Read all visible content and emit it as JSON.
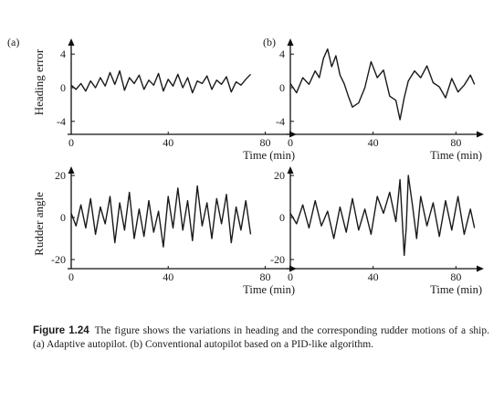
{
  "figure": {
    "caption_label": "Figure 1.24",
    "caption_text": "The figure shows the variations in heading and the corresponding rudder motions of a ship. (a) Adaptive autopilot. (b) Conventional autopilot based on a PID-like algorithm.",
    "panel_a_label": "(a)",
    "panel_b_label": "(b)",
    "ylabel_top": "Heading error",
    "ylabel_bottom": "Rudder angle",
    "xlabel": "Time (min)"
  },
  "chart_data": [
    {
      "type": "line",
      "panel": "(a)",
      "xlabel": "Time (min)",
      "ylabel": "Heading error",
      "xticks": [
        0,
        40,
        80
      ],
      "yticks": [
        -4,
        0,
        4
      ],
      "xlim": [
        0,
        90
      ],
      "ylim": [
        -5,
        5
      ],
      "series": [
        {
          "x": [
            0,
            2,
            4,
            6,
            8,
            10,
            12,
            14,
            16,
            18,
            20,
            22,
            24,
            26,
            28,
            30,
            32,
            34,
            36,
            38,
            40,
            42,
            44,
            46,
            48,
            50,
            52,
            54,
            56,
            58,
            60,
            62,
            64,
            66,
            68,
            70,
            72,
            74
          ],
          "y": [
            0.3,
            -0.2,
            0.5,
            -0.4,
            0.8,
            0,
            1.2,
            0.2,
            1.8,
            0.4,
            2,
            -0.3,
            1.2,
            0.5,
            1.5,
            -0.2,
            0.9,
            0.3,
            1.7,
            -0.4,
            1,
            0.2,
            1.6,
            0,
            1.2,
            -0.6,
            0.8,
            0.5,
            1.4,
            -0.2,
            0.9,
            0.4,
            1.3,
            -0.5,
            0.7,
            0.3,
            1,
            1.6
          ]
        }
      ]
    },
    {
      "type": "line",
      "panel": "(b)",
      "xlabel": "Time (min)",
      "ylabel": "Heading error",
      "xticks": [
        0,
        40,
        80
      ],
      "yticks": [
        -4,
        0,
        4
      ],
      "xlim": [
        0,
        90
      ],
      "ylim": [
        -5,
        5
      ],
      "series": [
        {
          "x": [
            0,
            3,
            6,
            9,
            12,
            14,
            16,
            18,
            20,
            22,
            24,
            26,
            28,
            30,
            33,
            36,
            39,
            42,
            45,
            48,
            51,
            53,
            55,
            57,
            60,
            63,
            66,
            69,
            72,
            75,
            78,
            81,
            84,
            87,
            89
          ],
          "y": [
            0.5,
            -0.6,
            1.2,
            0.4,
            2,
            1.2,
            3.5,
            4.6,
            2.5,
            3.8,
            1.5,
            0.5,
            -1,
            -2.3,
            -1.8,
            0,
            3.1,
            1.2,
            2.1,
            -1,
            -1.5,
            -3.8,
            -1.2,
            0.8,
            2,
            1.2,
            2.6,
            0.6,
            0.1,
            -1.2,
            1.1,
            -0.5,
            0.3,
            1.5,
            0.4
          ]
        }
      ]
    },
    {
      "type": "line",
      "panel": "(a)",
      "xlabel": "Time (min)",
      "ylabel": "Rudder angle",
      "xticks": [
        0,
        40,
        80
      ],
      "yticks": [
        -20,
        0,
        20
      ],
      "xlim": [
        0,
        90
      ],
      "ylim": [
        -25,
        25
      ],
      "series": [
        {
          "x": [
            0,
            2,
            4,
            6,
            8,
            10,
            12,
            14,
            16,
            18,
            20,
            22,
            24,
            26,
            28,
            30,
            32,
            34,
            36,
            38,
            40,
            42,
            44,
            46,
            48,
            50,
            52,
            54,
            56,
            58,
            60,
            62,
            64,
            66,
            68,
            70,
            72,
            74
          ],
          "y": [
            2,
            -4,
            6,
            -5,
            9,
            -8,
            5,
            -3,
            10,
            -12,
            7,
            -6,
            12,
            -10,
            4,
            -9,
            8,
            -7,
            3,
            -14,
            10,
            -5,
            14,
            -6,
            8,
            -11,
            15,
            -4,
            7,
            -10,
            9,
            -3,
            11,
            -12,
            5,
            -6,
            8,
            -8
          ]
        }
      ]
    },
    {
      "type": "line",
      "panel": "(b)",
      "xlabel": "Time (min)",
      "ylabel": "Rudder angle",
      "xticks": [
        0,
        40,
        80
      ],
      "yticks": [
        -20,
        0,
        20
      ],
      "xlim": [
        0,
        90
      ],
      "ylim": [
        -25,
        25
      ],
      "series": [
        {
          "x": [
            0,
            3,
            6,
            9,
            12,
            15,
            18,
            21,
            24,
            27,
            30,
            33,
            36,
            39,
            42,
            45,
            48,
            51,
            53,
            55,
            56,
            57,
            59,
            61,
            63,
            66,
            69,
            72,
            75,
            78,
            81,
            84,
            87,
            89
          ],
          "y": [
            2,
            -3,
            6,
            -5,
            8,
            -4,
            3,
            -10,
            5,
            -7,
            9,
            -6,
            4,
            -8,
            10,
            2,
            12,
            -2,
            18,
            -18,
            -5,
            20,
            6,
            -10,
            10,
            -4,
            7,
            -9,
            8,
            -6,
            10,
            -8,
            4,
            -5
          ]
        }
      ]
    }
  ]
}
